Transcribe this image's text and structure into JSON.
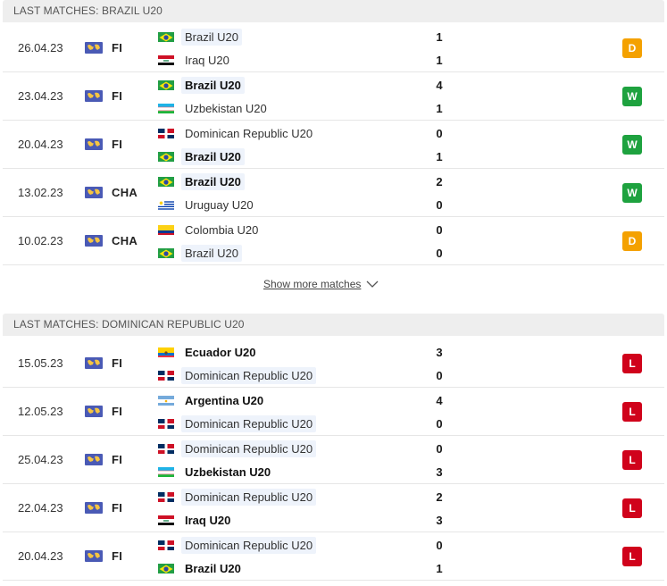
{
  "colors": {
    "draw": "#f4a100",
    "win": "#1ea23f",
    "loss": "#d0021b"
  },
  "sections": [
    {
      "title": "LAST MATCHES: BRAZIL U20",
      "matches": [
        {
          "date": "26.04.23",
          "competition": "FI",
          "home": {
            "name": "Brazil U20",
            "flag": "brazil",
            "bold": false,
            "highlight": true,
            "score": "1"
          },
          "away": {
            "name": "Iraq U20",
            "flag": "iraq",
            "bold": false,
            "highlight": false,
            "score": "1"
          },
          "result": "D"
        },
        {
          "date": "23.04.23",
          "competition": "FI",
          "home": {
            "name": "Brazil U20",
            "flag": "brazil",
            "bold": true,
            "highlight": true,
            "score": "4"
          },
          "away": {
            "name": "Uzbekistan U20",
            "flag": "uzbekistan",
            "bold": false,
            "highlight": false,
            "score": "1"
          },
          "result": "W"
        },
        {
          "date": "20.04.23",
          "competition": "FI",
          "home": {
            "name": "Dominican Republic U20",
            "flag": "dominican",
            "bold": false,
            "highlight": false,
            "score": "0"
          },
          "away": {
            "name": "Brazil U20",
            "flag": "brazil",
            "bold": true,
            "highlight": true,
            "score": "1"
          },
          "result": "W"
        },
        {
          "date": "13.02.23",
          "competition": "CHA",
          "home": {
            "name": "Brazil U20",
            "flag": "brazil",
            "bold": true,
            "highlight": true,
            "score": "2"
          },
          "away": {
            "name": "Uruguay U20",
            "flag": "uruguay",
            "bold": false,
            "highlight": false,
            "score": "0"
          },
          "result": "W"
        },
        {
          "date": "10.02.23",
          "competition": "CHA",
          "home": {
            "name": "Colombia U20",
            "flag": "colombia",
            "bold": false,
            "highlight": false,
            "score": "0"
          },
          "away": {
            "name": "Brazil U20",
            "flag": "brazil",
            "bold": false,
            "highlight": true,
            "score": "0"
          },
          "result": "D"
        }
      ]
    },
    {
      "title": "LAST MATCHES: DOMINICAN REPUBLIC U20",
      "matches": [
        {
          "date": "15.05.23",
          "competition": "FI",
          "home": {
            "name": "Ecuador U20",
            "flag": "ecuador",
            "bold": true,
            "highlight": false,
            "score": "3"
          },
          "away": {
            "name": "Dominican Republic U20",
            "flag": "dominican",
            "bold": false,
            "highlight": true,
            "score": "0"
          },
          "result": "L"
        },
        {
          "date": "12.05.23",
          "competition": "FI",
          "home": {
            "name": "Argentina U20",
            "flag": "argentina",
            "bold": true,
            "highlight": false,
            "score": "4"
          },
          "away": {
            "name": "Dominican Republic U20",
            "flag": "dominican",
            "bold": false,
            "highlight": true,
            "score": "0"
          },
          "result": "L"
        },
        {
          "date": "25.04.23",
          "competition": "FI",
          "home": {
            "name": "Dominican Republic U20",
            "flag": "dominican",
            "bold": false,
            "highlight": true,
            "score": "0"
          },
          "away": {
            "name": "Uzbekistan U20",
            "flag": "uzbekistan",
            "bold": true,
            "highlight": false,
            "score": "3"
          },
          "result": "L"
        },
        {
          "date": "22.04.23",
          "competition": "FI",
          "home": {
            "name": "Dominican Republic U20",
            "flag": "dominican",
            "bold": false,
            "highlight": true,
            "score": "2"
          },
          "away": {
            "name": "Iraq U20",
            "flag": "iraq",
            "bold": true,
            "highlight": false,
            "score": "3"
          },
          "result": "L"
        },
        {
          "date": "20.04.23",
          "competition": "FI",
          "home": {
            "name": "Dominican Republic U20",
            "flag": "dominican",
            "bold": false,
            "highlight": true,
            "score": "0"
          },
          "away": {
            "name": "Brazil U20",
            "flag": "brazil",
            "bold": true,
            "highlight": false,
            "score": "1"
          },
          "result": "L"
        }
      ]
    }
  ],
  "show_more": {
    "label": "Show more matches",
    "icon": "chevron-down-icon"
  },
  "competition_icon": "world-map-icon"
}
